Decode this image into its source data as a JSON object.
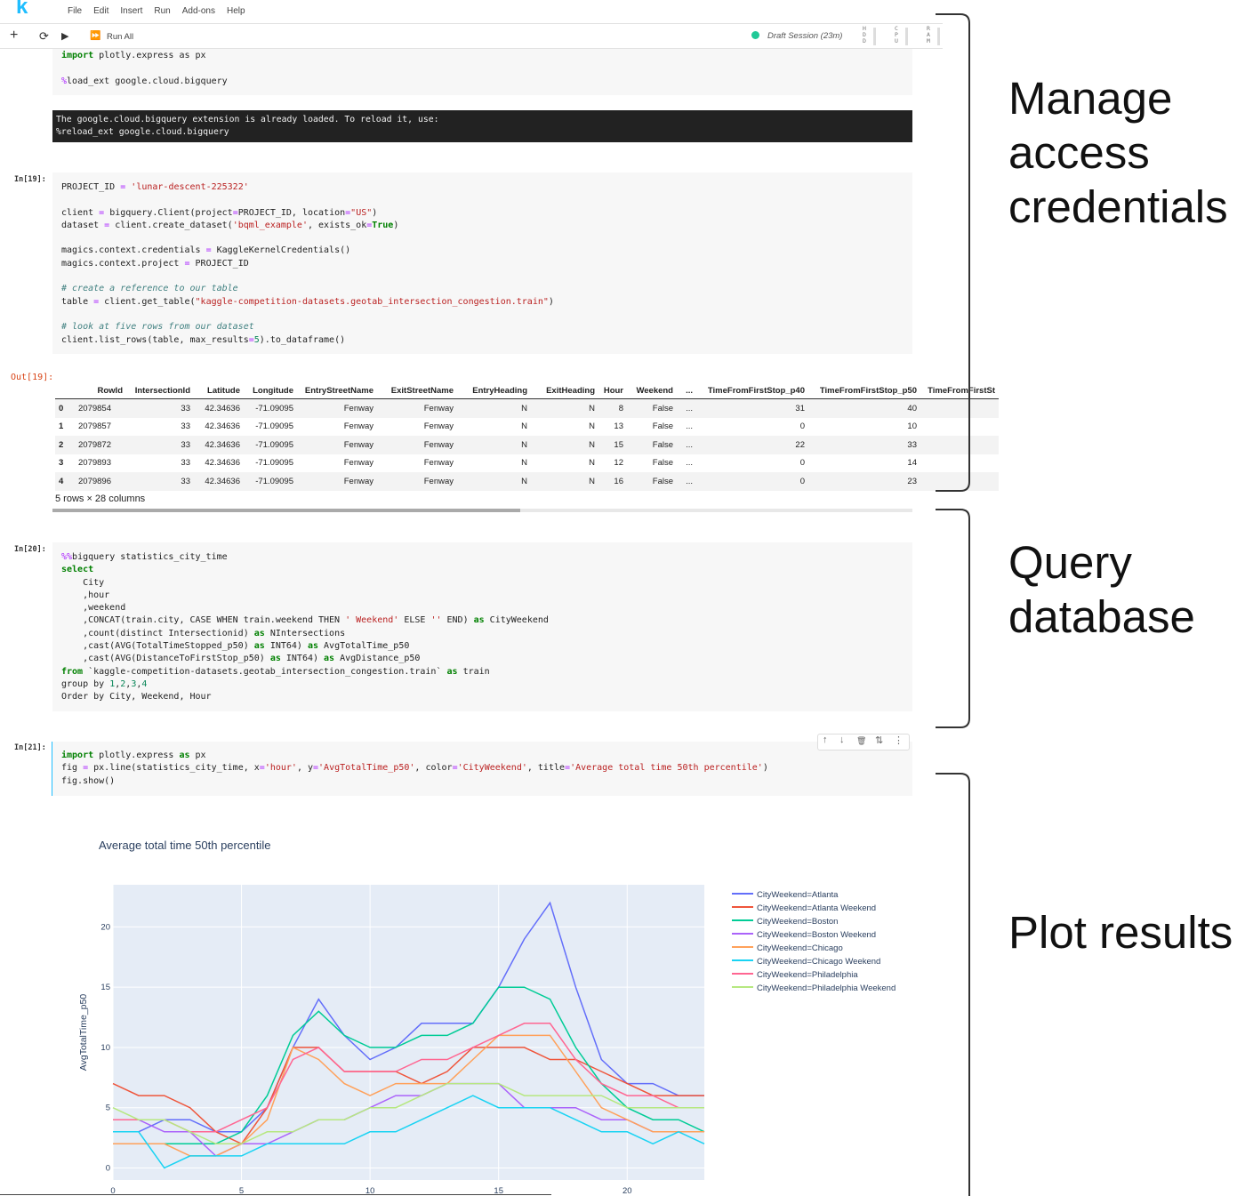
{
  "app": {
    "logo": "k",
    "menu": [
      "File",
      "Edit",
      "Insert",
      "Run",
      "Add-ons",
      "Help"
    ],
    "toolbar": {
      "run_all": "Run All"
    },
    "session": {
      "label": "Draft Session (23m)",
      "status_color": "#20c997"
    },
    "meters": [
      {
        "label": "H D D"
      },
      {
        "label": "C P U"
      },
      {
        "label": "R A M"
      }
    ]
  },
  "cells": {
    "cell0": {
      "lines": [
        "import plotly.express as px",
        "",
        "%load_ext google.cloud.bigquery"
      ],
      "stderr": [
        "The google.cloud.bigquery extension is already loaded. To reload it, use:",
        "  %reload_ext google.cloud.bigquery"
      ]
    },
    "cell19": {
      "prompt_in": "In[19]:",
      "prompt_out": "Out[19]:",
      "code": [
        "PROJECT_ID = 'lunar-descent-225322'",
        "",
        "client = bigquery.Client(project=PROJECT_ID, location=\"US\")",
        "dataset = client.create_dataset('bqml_example', exists_ok=True)",
        "",
        "magics.context.credentials = KaggleKernelCredentials()",
        "magics.context.project = PROJECT_ID",
        "",
        "# create a reference to our table",
        "table = client.get_table(\"kaggle-competition-datasets.geotab_intersection_congestion.train\")",
        "",
        "# look at five rows from our dataset",
        "client.list_rows(table, max_results=5).to_dataframe()"
      ],
      "dataframe": {
        "columns": [
          "",
          "RowId",
          "IntersectionId",
          "Latitude",
          "Longitude",
          "EntryStreetName",
          "ExitStreetName",
          "EntryHeading",
          "ExitHeading",
          "Hour",
          "Weekend",
          "...",
          "TimeFromFirstStop_p40",
          "TimeFromFirstStop_p50",
          "TimeFromFirstSt"
        ],
        "rows": [
          [
            "0",
            "2079854",
            "33",
            "42.34636",
            "-71.09095",
            "Fenway",
            "Fenway",
            "N",
            "N",
            "8",
            "False",
            "...",
            "31",
            "40",
            ""
          ],
          [
            "1",
            "2079857",
            "33",
            "42.34636",
            "-71.09095",
            "Fenway",
            "Fenway",
            "N",
            "N",
            "13",
            "False",
            "...",
            "0",
            "10",
            ""
          ],
          [
            "2",
            "2079872",
            "33",
            "42.34636",
            "-71.09095",
            "Fenway",
            "Fenway",
            "N",
            "N",
            "15",
            "False",
            "...",
            "22",
            "33",
            ""
          ],
          [
            "3",
            "2079893",
            "33",
            "42.34636",
            "-71.09095",
            "Fenway",
            "Fenway",
            "N",
            "N",
            "12",
            "False",
            "...",
            "0",
            "14",
            ""
          ],
          [
            "4",
            "2079896",
            "33",
            "42.34636",
            "-71.09095",
            "Fenway",
            "Fenway",
            "N",
            "N",
            "16",
            "False",
            "...",
            "0",
            "23",
            ""
          ]
        ],
        "shape": "5 rows × 28 columns"
      }
    },
    "cell20": {
      "prompt_in": "In[20]:",
      "code": [
        "%%bigquery statistics_city_time",
        "select",
        "    City",
        "    ,hour",
        "    ,weekend",
        "    ,CONCAT(train.city, CASE WHEN train.weekend THEN ' Weekend' ELSE '' END) as CityWeekend",
        "    ,count(distinct Intersectionid) as NIntersections",
        "    ,cast(AVG(TotalTimeStopped_p50) as INT64) as AvgTotalTime_p50",
        "    ,cast(AVG(DistanceToFirstStop_p50) as INT64) as AvgDistance_p50",
        "from `kaggle-competition-datasets.geotab_intersection_congestion.train` as train",
        "group by 1,2,3,4",
        "Order by City, Weekend, Hour"
      ]
    },
    "cell21": {
      "prompt_in": "In[21]:",
      "code": [
        "import plotly.express as px",
        "fig = px.line(statistics_city_time, x='hour', y='AvgTotalTime_p50', color='CityWeekend', title='Average total time 50th percentile')",
        "fig.show()"
      ],
      "cell_buttons": [
        "↑",
        "↓",
        "🗑",
        "⇅",
        "⋮"
      ]
    }
  },
  "chart_data": {
    "type": "line",
    "title": "Average total time 50th percentile",
    "xlabel": "",
    "ylabel": "AvgTotalTime_p50",
    "xlim": [
      0,
      23
    ],
    "ylim": [
      -1,
      23.5
    ],
    "x_ticks": [
      0,
      5,
      10,
      15,
      20
    ],
    "y_ticks": [
      0,
      5,
      10,
      15,
      20
    ],
    "grid": true,
    "legend_position": "right",
    "x": [
      0,
      1,
      2,
      3,
      4,
      5,
      6,
      7,
      8,
      9,
      10,
      11,
      12,
      13,
      14,
      15,
      16,
      17,
      18,
      19,
      20,
      21,
      22,
      23
    ],
    "series": [
      {
        "name": "CityWeekend=Atlanta",
        "color": "#636efa",
        "values": [
          3,
          3,
          4,
          4,
          3,
          3,
          5,
          10,
          14,
          11,
          9,
          10,
          12,
          12,
          12,
          15,
          19,
          22,
          15,
          9,
          7,
          7,
          6,
          6
        ]
      },
      {
        "name": "CityWeekend=Atlanta Weekend",
        "color": "#ef553b",
        "values": [
          7,
          6,
          6,
          5,
          3,
          2,
          5,
          10,
          10,
          8,
          8,
          8,
          7,
          8,
          10,
          10,
          10,
          9,
          9,
          8,
          7,
          6,
          6,
          6
        ]
      },
      {
        "name": "CityWeekend=Boston",
        "color": "#00cc96",
        "values": [
          2,
          2,
          2,
          2,
          2,
          3,
          6,
          11,
          13,
          11,
          10,
          10,
          11,
          11,
          12,
          15,
          15,
          14,
          10,
          7,
          5,
          4,
          4,
          3
        ]
      },
      {
        "name": "CityWeekend=Boston Weekend",
        "color": "#ab63fa",
        "values": [
          4,
          4,
          3,
          3,
          1,
          2,
          2,
          3,
          4,
          4,
          5,
          6,
          6,
          7,
          7,
          7,
          5,
          5,
          5,
          4,
          4,
          3,
          3,
          3
        ]
      },
      {
        "name": "CityWeekend=Chicago",
        "color": "#ffa15a",
        "values": [
          2,
          2,
          2,
          1,
          1,
          2,
          4,
          10,
          9,
          7,
          6,
          7,
          7,
          7,
          9,
          11,
          11,
          11,
          8,
          5,
          4,
          3,
          3,
          3
        ]
      },
      {
        "name": "CityWeekend=Chicago Weekend",
        "color": "#19d3f3",
        "values": [
          3,
          3,
          0,
          1,
          1,
          1,
          2,
          2,
          2,
          2,
          3,
          3,
          4,
          5,
          6,
          5,
          5,
          5,
          4,
          3,
          3,
          2,
          3,
          2
        ]
      },
      {
        "name": "CityWeekend=Philadelphia",
        "color": "#ff6692",
        "values": [
          4,
          4,
          4,
          3,
          3,
          4,
          5,
          9,
          10,
          8,
          8,
          8,
          9,
          9,
          10,
          11,
          12,
          12,
          9,
          7,
          6,
          6,
          5,
          5
        ]
      },
      {
        "name": "CityWeekend=Philadelphia Weekend",
        "color": "#b6e880",
        "values": [
          5,
          4,
          4,
          3,
          2,
          2,
          3,
          3,
          4,
          4,
          5,
          5,
          6,
          7,
          7,
          7,
          6,
          6,
          6,
          6,
          5,
          5,
          5,
          5
        ]
      }
    ]
  },
  "annotations": [
    "Manage access credentials",
    "Query database",
    "Plot results"
  ]
}
